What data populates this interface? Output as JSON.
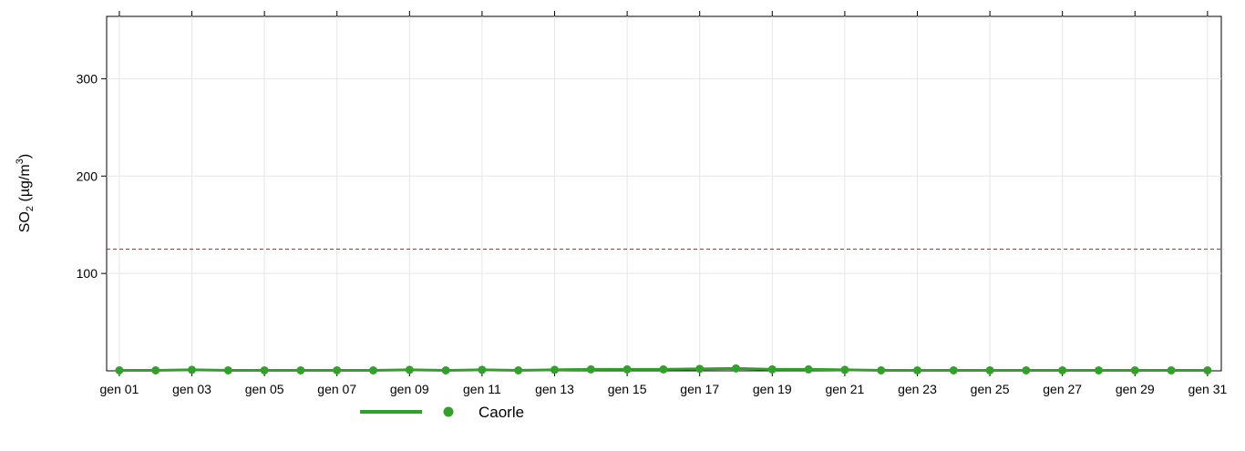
{
  "chart_data": {
    "type": "line",
    "y_label": {
      "text": "SO",
      "sub": "2",
      "unit": " (µg/m",
      "sup": "3",
      "close": ")"
    },
    "x": [
      1,
      2,
      3,
      4,
      5,
      6,
      7,
      8,
      9,
      10,
      11,
      12,
      13,
      14,
      15,
      16,
      17,
      18,
      19,
      20,
      21,
      22,
      23,
      24,
      25,
      26,
      27,
      28,
      29,
      30,
      31
    ],
    "xlim": [
      0.65,
      31.38
    ],
    "xticks": [
      {
        "value": 1,
        "label": "gen 01"
      },
      {
        "value": 3,
        "label": "gen 03"
      },
      {
        "value": 5,
        "label": "gen 05"
      },
      {
        "value": 7,
        "label": "gen 07"
      },
      {
        "value": 9,
        "label": "gen 09"
      },
      {
        "value": 11,
        "label": "gen 11"
      },
      {
        "value": 13,
        "label": "gen 13"
      },
      {
        "value": 15,
        "label": "gen 15"
      },
      {
        "value": 17,
        "label": "gen 17"
      },
      {
        "value": 19,
        "label": "gen 19"
      },
      {
        "value": 21,
        "label": "gen 21"
      },
      {
        "value": 23,
        "label": "gen 23"
      },
      {
        "value": 25,
        "label": "gen 25"
      },
      {
        "value": 27,
        "label": "gen 27"
      },
      {
        "value": 29,
        "label": "gen 29"
      },
      {
        "value": 31,
        "label": "gen 31"
      }
    ],
    "ylim": [
      0,
      364
    ],
    "yticks": [
      100,
      200,
      300
    ],
    "grid": true,
    "reference_line": {
      "value": 125,
      "color": "#ff0000"
    },
    "series": [
      {
        "name": "Caorle",
        "color": "#33a02c",
        "values": [
          0.5,
          0.5,
          1,
          0.5,
          0.5,
          0.5,
          0.5,
          0.5,
          1,
          0.5,
          1,
          0.5,
          1,
          1.5,
          1.5,
          1.5,
          2,
          2.5,
          1.5,
          1.5,
          1,
          0.5,
          0.5,
          0.5,
          0.5,
          0.5,
          0.5,
          0.5,
          0.5,
          0.5,
          0.5
        ]
      }
    ]
  }
}
